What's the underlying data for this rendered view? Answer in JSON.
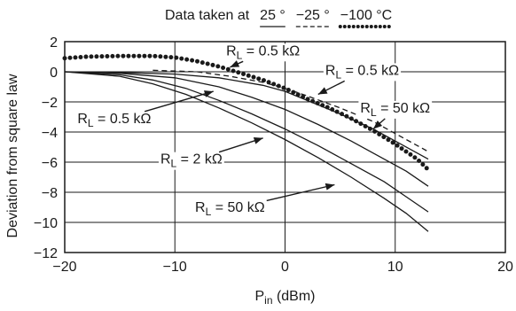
{
  "chart_data": {
    "type": "line",
    "xlabel": {
      "main": "P",
      "sub": "in",
      "unit": " (dBm)"
    },
    "ylabel": "Deviation from square law",
    "xlim": [
      -20,
      20
    ],
    "ylim": [
      -12,
      2
    ],
    "xticks": [
      -20,
      -10,
      0,
      10,
      20
    ],
    "yticks": [
      2,
      0,
      -2,
      -4,
      -6,
      -8,
      -10,
      -12
    ],
    "x_tick_labels": [
      "−20",
      "−10",
      "0",
      "10",
      "20"
    ],
    "y_tick_labels": [
      "2",
      "0",
      "−2",
      "−4",
      "−6",
      "−8",
      "−10",
      "−12"
    ],
    "grid": true,
    "legend": {
      "prefix": "Data taken at",
      "entries": [
        {
          "label": "25 °",
          "style": "solid"
        },
        {
          "label": "−25 °",
          "style": "dashed"
        },
        {
          "label": "−100 °C",
          "style": "dotted"
        }
      ]
    },
    "series": [
      {
        "style": "solid",
        "x": [
          -20,
          -15,
          -10,
          -6,
          -2,
          0,
          2,
          5,
          8,
          10,
          13
        ],
        "y": [
          0,
          -0.05,
          -0.15,
          -0.4,
          -0.9,
          -1.3,
          -1.9,
          -2.8,
          -3.8,
          -4.6,
          -5.8
        ]
      },
      {
        "style": "solid",
        "x": [
          -20,
          -15,
          -10,
          -6,
          -3,
          0,
          3,
          6,
          9,
          11,
          13
        ],
        "y": [
          0,
          -0.1,
          -0.4,
          -1.0,
          -1.7,
          -2.5,
          -3.5,
          -4.6,
          -5.8,
          -6.6,
          -7.6
        ]
      },
      {
        "style": "solid",
        "x": [
          -20,
          -15,
          -12,
          -9,
          -6,
          -3,
          0,
          3,
          6,
          9,
          11,
          13
        ],
        "y": [
          0,
          -0.2,
          -0.55,
          -1.1,
          -1.9,
          -2.8,
          -3.8,
          -4.9,
          -6.1,
          -7.3,
          -8.3,
          -9.3
        ]
      },
      {
        "style": "solid",
        "x": [
          -20,
          -15,
          -12,
          -9,
          -6,
          -3,
          0,
          3,
          6,
          9,
          11,
          13
        ],
        "y": [
          0,
          -0.3,
          -0.8,
          -1.5,
          -2.4,
          -3.4,
          -4.5,
          -5.7,
          -7.0,
          -8.4,
          -9.4,
          -10.6
        ]
      },
      {
        "style": "dashed",
        "x": [
          -12,
          -8,
          -5,
          -2,
          0,
          2,
          5,
          8,
          10,
          13
        ],
        "y": [
          0.1,
          0,
          -0.3,
          -0.7,
          -1.1,
          -1.6,
          -2.4,
          -3.3,
          -4.1,
          -5.3
        ]
      },
      {
        "style": "dotted",
        "x": [
          -20,
          -18,
          -15,
          -12,
          -10,
          -8,
          -6,
          -4,
          -2,
          0,
          2,
          4,
          6,
          8,
          10,
          12,
          13
        ],
        "y": [
          0.9,
          1.0,
          1.05,
          1.05,
          0.95,
          0.7,
          0.35,
          -0.1,
          -0.55,
          -1.1,
          -1.8,
          -2.4,
          -3.1,
          -3.9,
          -4.8,
          -5.8,
          -6.5
        ]
      }
    ],
    "annotations": [
      {
        "main": "R",
        "sub": "L",
        "rest": " = 0.5 kΩ",
        "x": -2,
        "y": 1.1,
        "arrow_to": [
          -5,
          0.3
        ]
      },
      {
        "main": "R",
        "sub": "L",
        "rest": " = 0.5 kΩ",
        "x": 7,
        "y": -0.2,
        "arrow_to": [
          3,
          -1.5
        ]
      },
      {
        "main": "R",
        "sub": "L",
        "rest": " = 50 kΩ",
        "x": 10,
        "y": -2.7,
        "arrow_to": [
          8,
          -3.8
        ]
      },
      {
        "main": "R",
        "sub": "L",
        "rest": " = 0.5 kΩ",
        "x": -15.5,
        "y": -3.4,
        "arrow_to": [
          -6.5,
          -1.3
        ]
      },
      {
        "main": "R",
        "sub": "L",
        "rest": " = 2 kΩ",
        "x": -8.5,
        "y": -6.1,
        "arrow_to": [
          -2,
          -4.4
        ]
      },
      {
        "main": "R",
        "sub": "L",
        "rest": " = 50 kΩ",
        "x": -5,
        "y": -9.3,
        "arrow_to": [
          4.5,
          -7.5
        ]
      }
    ]
  }
}
